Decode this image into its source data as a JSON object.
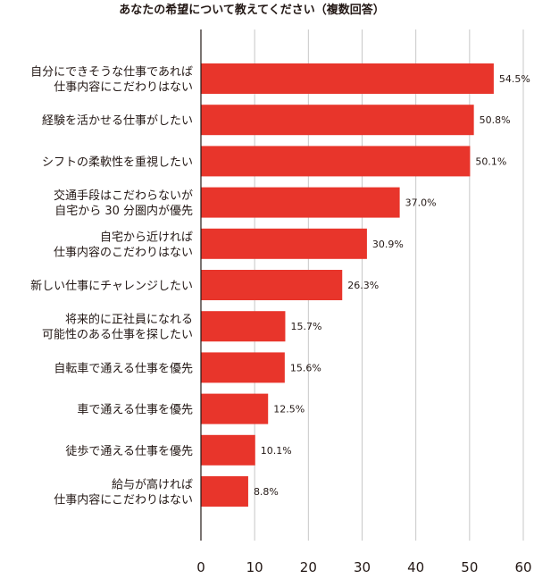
{
  "chart_data": {
    "type": "bar",
    "orientation": "horizontal",
    "title": "あなたの希望について教えてください（複数回答）",
    "categories": [
      [
        "自分にできそうな仕事であれば",
        "仕事内容にこだわりはない"
      ],
      [
        "経験を活かせる仕事がしたい"
      ],
      [
        "シフトの柔軟性を重視したい"
      ],
      [
        "交通手段はこだわらないが",
        "自宅から 30 分圏内が優先"
      ],
      [
        "自宅から近ければ",
        "仕事内容のこだわりはない"
      ],
      [
        "新しい仕事にチャレンジしたい"
      ],
      [
        "将来的に正社員になれる",
        "可能性のある仕事を探したい"
      ],
      [
        "自転車で通える仕事を優先"
      ],
      [
        "車で通える仕事を優先"
      ],
      [
        "徒歩で通える仕事を優先"
      ],
      [
        "給与が高ければ",
        "仕事内容にこだわりはない"
      ]
    ],
    "values": [
      54.5,
      50.8,
      50.1,
      37.0,
      30.9,
      26.3,
      15.7,
      15.6,
      12.5,
      10.1,
      8.8
    ],
    "value_labels": [
      "54.5%",
      "50.8%",
      "50.1%",
      "37.0%",
      "30.9%",
      "26.3%",
      "15.7%",
      "15.6%",
      "12.5%",
      "10.1%",
      "8.8%"
    ],
    "xlim": [
      0,
      60
    ],
    "xticks": [
      "0",
      "10",
      "20",
      "30",
      "40",
      "50",
      "60"
    ],
    "grid": true,
    "colors": {
      "bar": "#e8352b",
      "grid": "#c8c8c8",
      "text": "#231815"
    }
  }
}
